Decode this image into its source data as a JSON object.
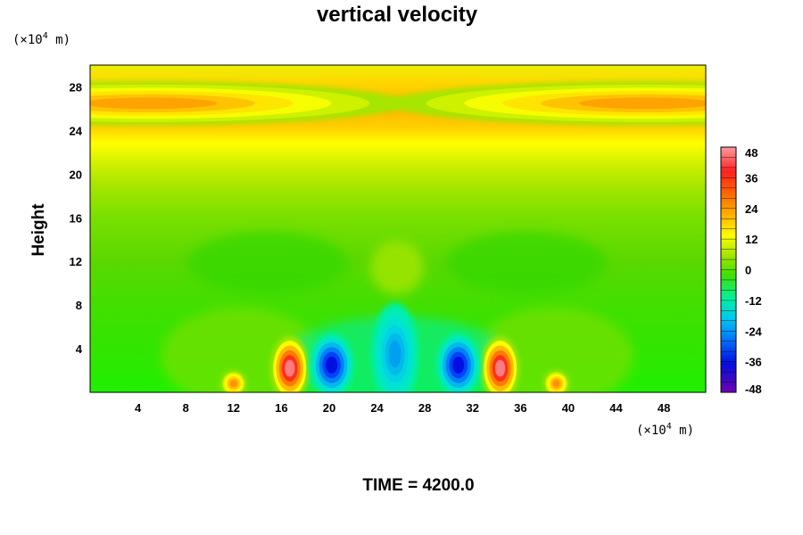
{
  "chart_data": {
    "type": "heatmap",
    "title": "vertical velocity",
    "ylabel": "Height",
    "xlabel": "",
    "y_unit": {
      "prefix": "(×10",
      "exponent": "4",
      "suffix": " m)"
    },
    "x_unit": {
      "prefix": "(×10",
      "exponent": "4",
      "suffix": " m)"
    },
    "xlim": [
      0,
      51.5
    ],
    "ylim": [
      0,
      30
    ],
    "x_ticks": [
      4,
      8,
      12,
      16,
      20,
      24,
      28,
      32,
      36,
      40,
      44,
      48
    ],
    "y_ticks": [
      4,
      8,
      12,
      16,
      20,
      24,
      28
    ],
    "colorbar": {
      "range": [
        -48,
        48
      ],
      "step": 4,
      "ticks": [
        48,
        36,
        24,
        12,
        0,
        -12,
        -24,
        -36,
        -48
      ]
    },
    "features": [
      {
        "label": "upper layer maximum",
        "x": 5,
        "y": 26.5,
        "rx": 16,
        "ry": 1.5,
        "value": 26
      },
      {
        "label": "upper layer maximum",
        "x": 46.5,
        "y": 26.5,
        "rx": 16,
        "ry": 1.5,
        "value": 26
      },
      {
        "label": "updraft core",
        "x": 16.7,
        "y": 2.2,
        "rx": 1.2,
        "ry": 2.2,
        "value": 46
      },
      {
        "label": "updraft core",
        "x": 34.3,
        "y": 2.2,
        "rx": 1.2,
        "ry": 2.2,
        "value": 46
      },
      {
        "label": "downdraft core",
        "x": 20.2,
        "y": 2.5,
        "rx": 1.4,
        "ry": 2.2,
        "value": -40
      },
      {
        "label": "downdraft core",
        "x": 30.8,
        "y": 2.5,
        "rx": 1.4,
        "ry": 2.2,
        "value": -40
      },
      {
        "label": "central downdraft",
        "x": 25.5,
        "y": 3.5,
        "rx": 1.5,
        "ry": 3.5,
        "value": -24
      },
      {
        "label": "small updraft",
        "x": 12.0,
        "y": 0.8,
        "rx": 0.8,
        "ry": 0.9,
        "value": 28
      },
      {
        "label": "small updraft",
        "x": 39.0,
        "y": 0.8,
        "rx": 0.8,
        "ry": 0.9,
        "value": 28
      }
    ]
  },
  "footer": {
    "time_text": "TIME = 4200.0"
  }
}
